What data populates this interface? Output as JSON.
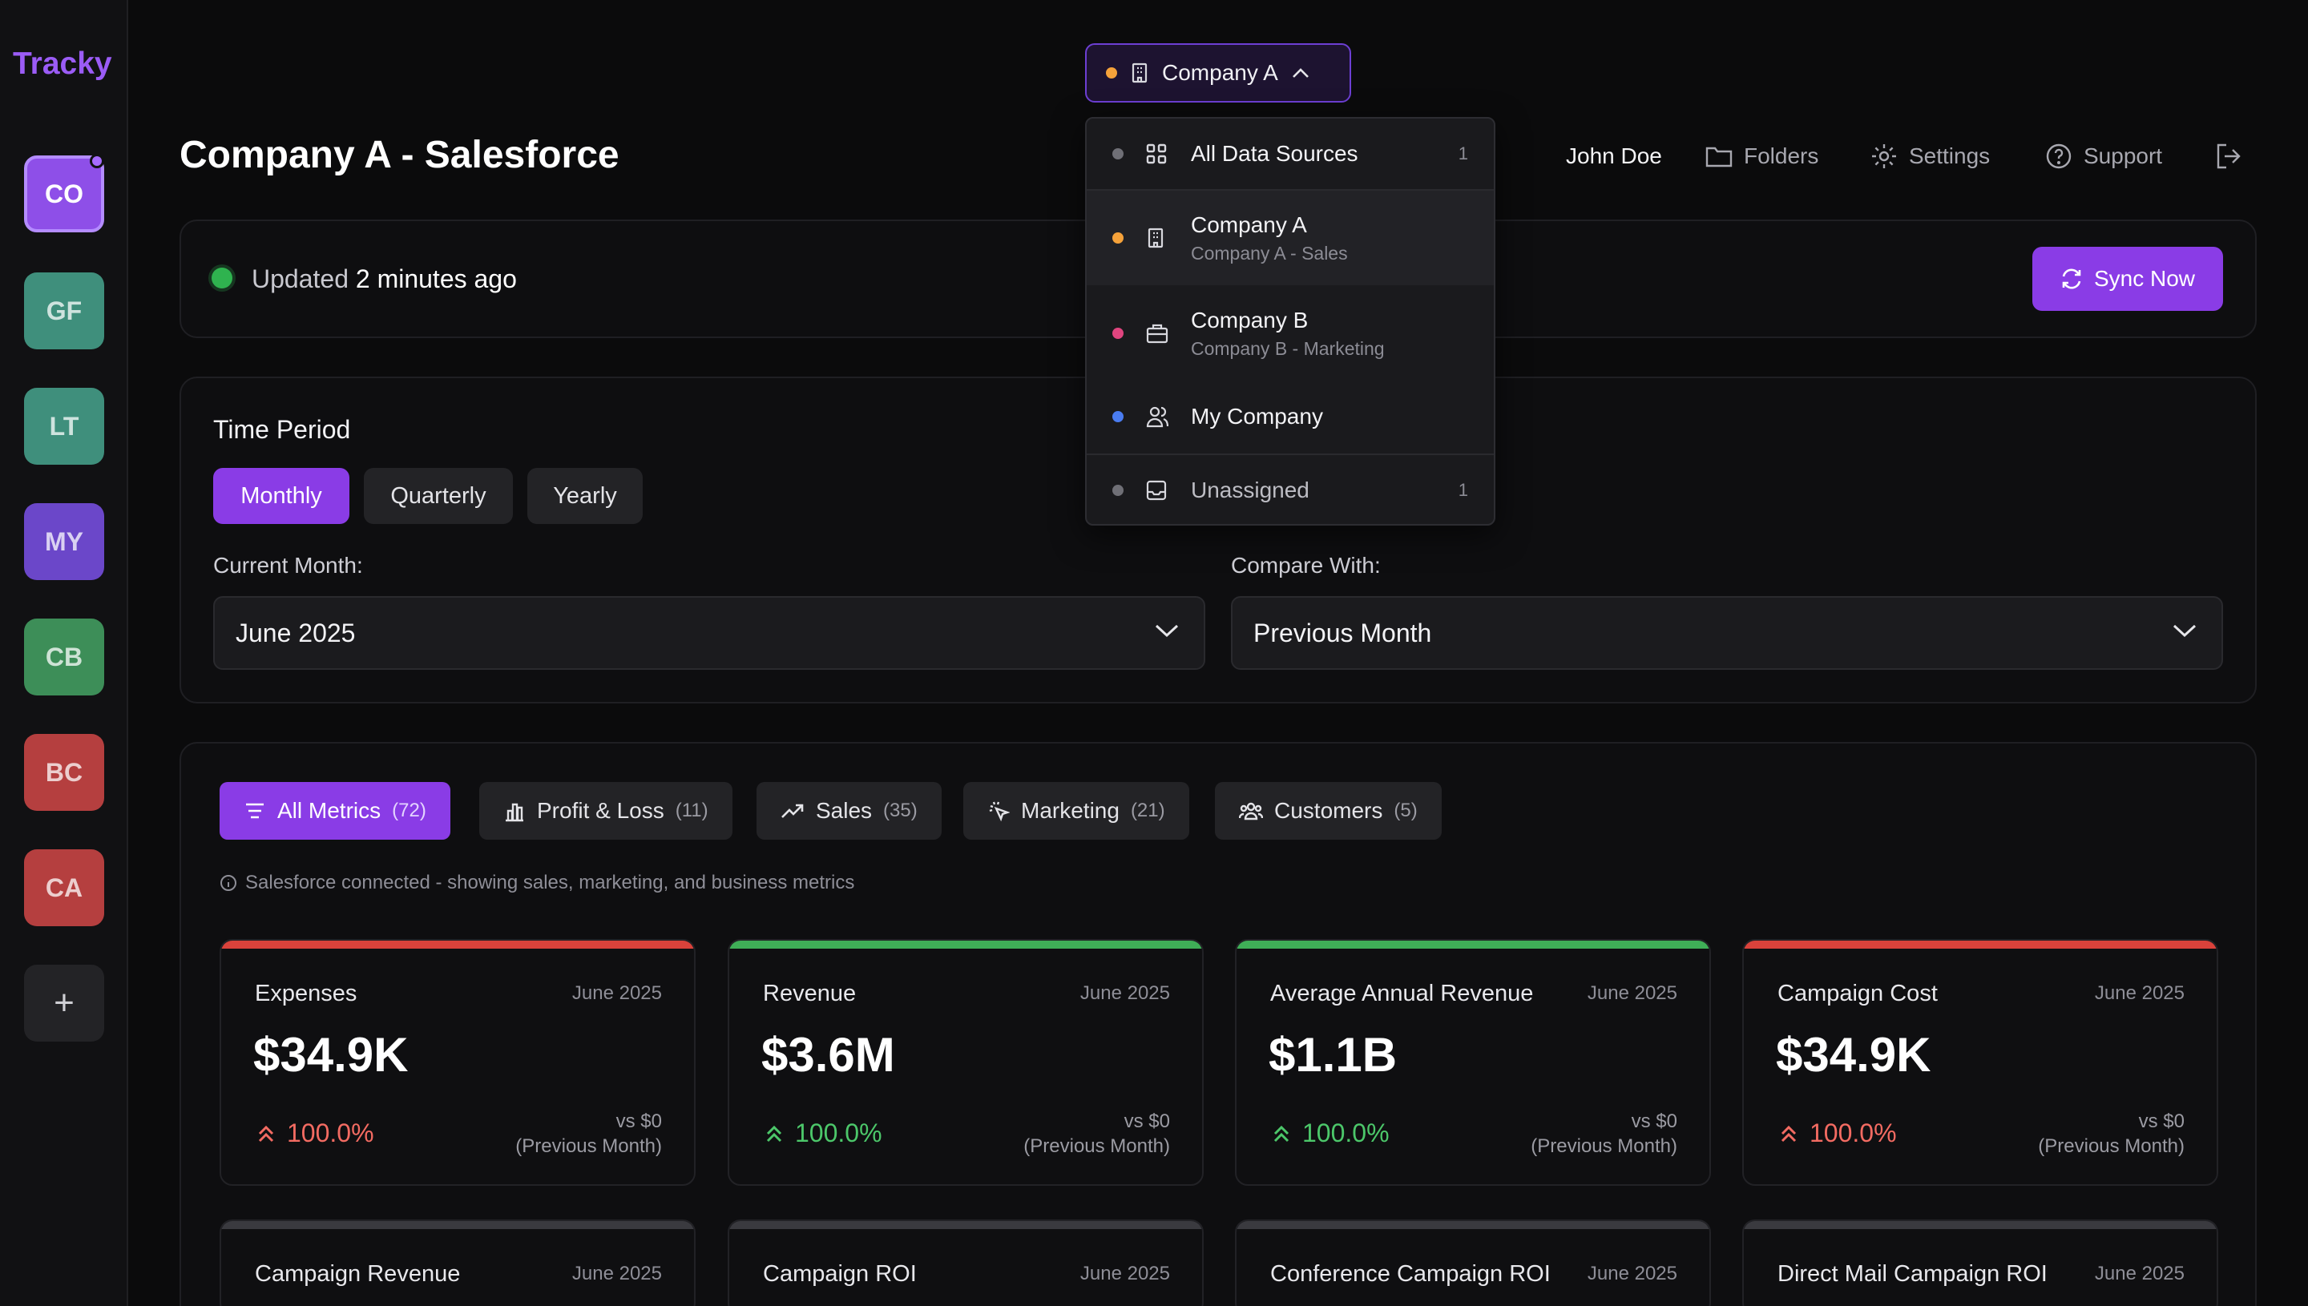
{
  "app": {
    "brand": "Tracky"
  },
  "sidebar": {
    "workspaces": [
      {
        "initials": "CO",
        "color": "#8e4fe8",
        "active": true,
        "badge": true
      },
      {
        "initials": "GF",
        "color": "#3f8f7c"
      },
      {
        "initials": "LT",
        "color": "#3f8f7c"
      },
      {
        "initials": "MY",
        "color": "#6b47c9"
      },
      {
        "initials": "CB",
        "color": "#3d8e58"
      },
      {
        "initials": "BC",
        "color": "#b53f3f"
      },
      {
        "initials": "CA",
        "color": "#b53f3f"
      }
    ],
    "add_label": "+"
  },
  "header": {
    "company_switch": {
      "label": "Company A",
      "dot_color": "#f5a23a"
    },
    "page_title": "Company A - Salesforce",
    "user_name": "John Doe",
    "nav": {
      "folders": "Folders",
      "settings": "Settings",
      "support": "Support"
    }
  },
  "status": {
    "prefix": "Updated",
    "time": "2 minutes ago",
    "sync_label": "Sync Now"
  },
  "time_period": {
    "label": "Time Period",
    "options": [
      "Monthly",
      "Quarterly",
      "Yearly"
    ],
    "selected": "Monthly",
    "current_label": "Current Month:",
    "current_value": "June 2025",
    "compare_label": "Compare With:",
    "compare_value": "Previous Month"
  },
  "dropdown": {
    "items": [
      {
        "title": "All Data Sources",
        "sub": "",
        "count": "1",
        "dot": "#6f6f76",
        "icon": "grid"
      },
      {
        "title": "Company A",
        "sub": "Company A - Sales",
        "count": "",
        "dot": "#f5a23a",
        "icon": "building",
        "selected": true
      },
      {
        "title": "Company B",
        "sub": "Company B - Marketing",
        "count": "",
        "dot": "#e0457f",
        "icon": "briefcase"
      },
      {
        "title": "My Company",
        "sub": "",
        "count": "",
        "dot": "#4a7cf0",
        "icon": "users"
      },
      {
        "title": "Unassigned",
        "sub": "",
        "count": "1",
        "dot": "#6f6f76",
        "icon": "inbox"
      }
    ]
  },
  "tabs": [
    {
      "label": "All Metrics",
      "count": "(72)",
      "active": true
    },
    {
      "label": "Profit & Loss",
      "count": "(11)"
    },
    {
      "label": "Sales",
      "count": "(35)"
    },
    {
      "label": "Marketing",
      "count": "(21)"
    },
    {
      "label": "Customers",
      "count": "(5)"
    }
  ],
  "info_line": "Salesforce connected - showing sales, marketing, and business metrics",
  "cards": [
    {
      "name": "Expenses",
      "date": "June 2025",
      "value": "$34.9K",
      "change": "100.0%",
      "vs": "vs $0",
      "vs_period": "(Previous Month)",
      "bar_color": "#d9423b",
      "change_color": "#f36b62"
    },
    {
      "name": "Revenue",
      "date": "June 2025",
      "value": "$3.6M",
      "change": "100.0%",
      "vs": "vs $0",
      "vs_period": "(Previous Month)",
      "bar_color": "#3fae57",
      "change_color": "#4cc76a"
    },
    {
      "name": "Average Annual Revenue",
      "date": "June 2025",
      "value": "$1.1B",
      "change": "100.0%",
      "vs": "vs $0",
      "vs_period": "(Previous Month)",
      "bar_color": "#3fae57",
      "change_color": "#4cc76a"
    },
    {
      "name": "Campaign Cost",
      "date": "June 2025",
      "value": "$34.9K",
      "change": "100.0%",
      "vs": "vs $0",
      "vs_period": "(Previous Month)",
      "bar_color": "#d9423b",
      "change_color": "#f36b62"
    },
    {
      "name": "Campaign Revenue",
      "date": "June 2025",
      "bar_color": "#3a3a3f"
    },
    {
      "name": "Campaign ROI",
      "date": "June 2025",
      "bar_color": "#3a3a3f"
    },
    {
      "name": "Conference Campaign ROI",
      "date": "June 2025",
      "bar_color": "#3a3a3f"
    },
    {
      "name": "Direct Mail Campaign ROI",
      "date": "June 2025",
      "bar_color": "#3a3a3f"
    }
  ]
}
